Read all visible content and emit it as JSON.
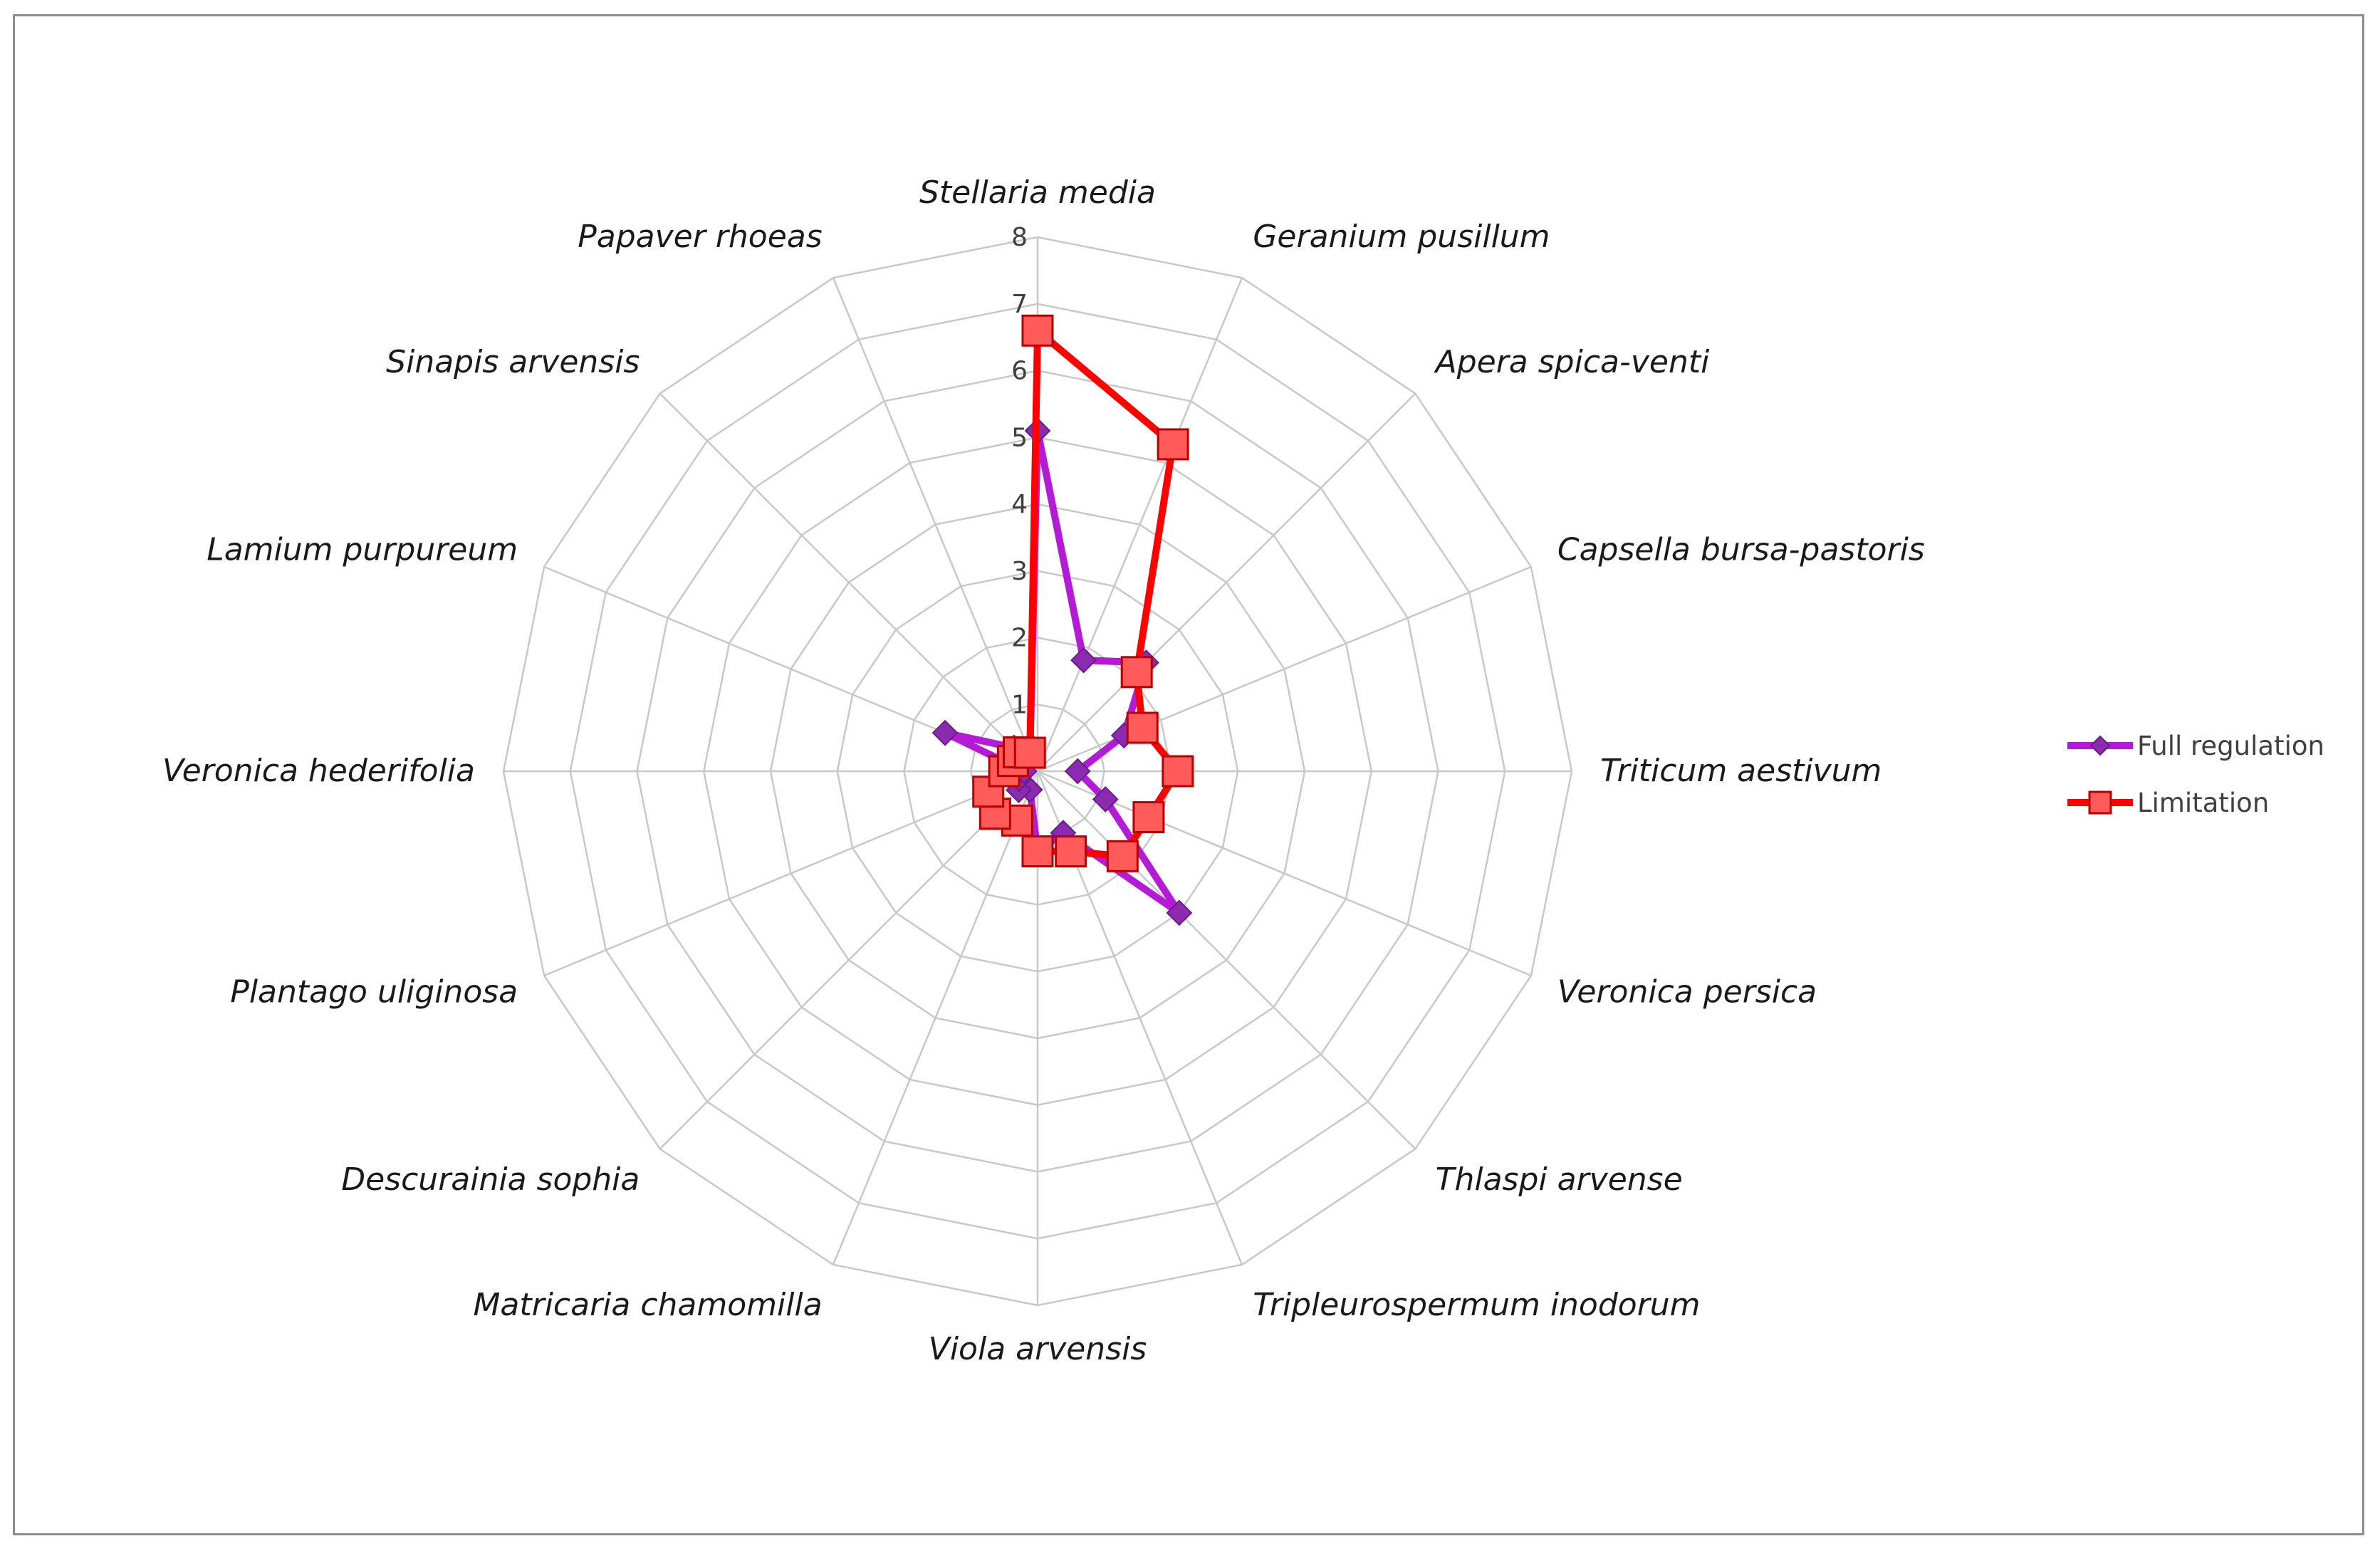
{
  "chart_data": {
    "type": "radar",
    "categories": [
      "Stellaria media",
      "Geranium pusillum",
      "Apera spica-venti",
      "Capsella bursa-pastoris",
      "Triticum aestivum",
      "Veronica persica",
      "Thlaspi arvense",
      "Tripleurospermum inodorum",
      "Viola arvensis",
      "Matricaria chamomilla",
      "Descurainia sophia",
      "Plantago uliginosa",
      "Veronica hederifolia",
      "Lamium purpureum",
      "Sinapis arvensis",
      "Papaver rhoeas"
    ],
    "series": [
      {
        "name": "Full regulation",
        "color": "#b31bd6",
        "marker": "diamond",
        "values": [
          5.1,
          1.8,
          2.3,
          1.4,
          0.6,
          1.1,
          3.0,
          1.0,
          1.2,
          0.3,
          0.4,
          0.3,
          0.2,
          1.5,
          0.5,
          0.3
        ]
      },
      {
        "name": "Limitation",
        "color": "#ff0000",
        "marker": "square",
        "values": [
          6.6,
          5.3,
          2.1,
          1.7,
          2.1,
          1.8,
          1.8,
          1.3,
          1.2,
          0.8,
          0.9,
          0.8,
          0.5,
          0.4,
          0.4,
          0.3
        ]
      }
    ],
    "rmin": 0,
    "rmax": 8,
    "ticks": [
      "0",
      "1",
      "2",
      "3",
      "4",
      "5",
      "6",
      "7",
      "8"
    ],
    "grid": true,
    "legend_position": "right"
  }
}
